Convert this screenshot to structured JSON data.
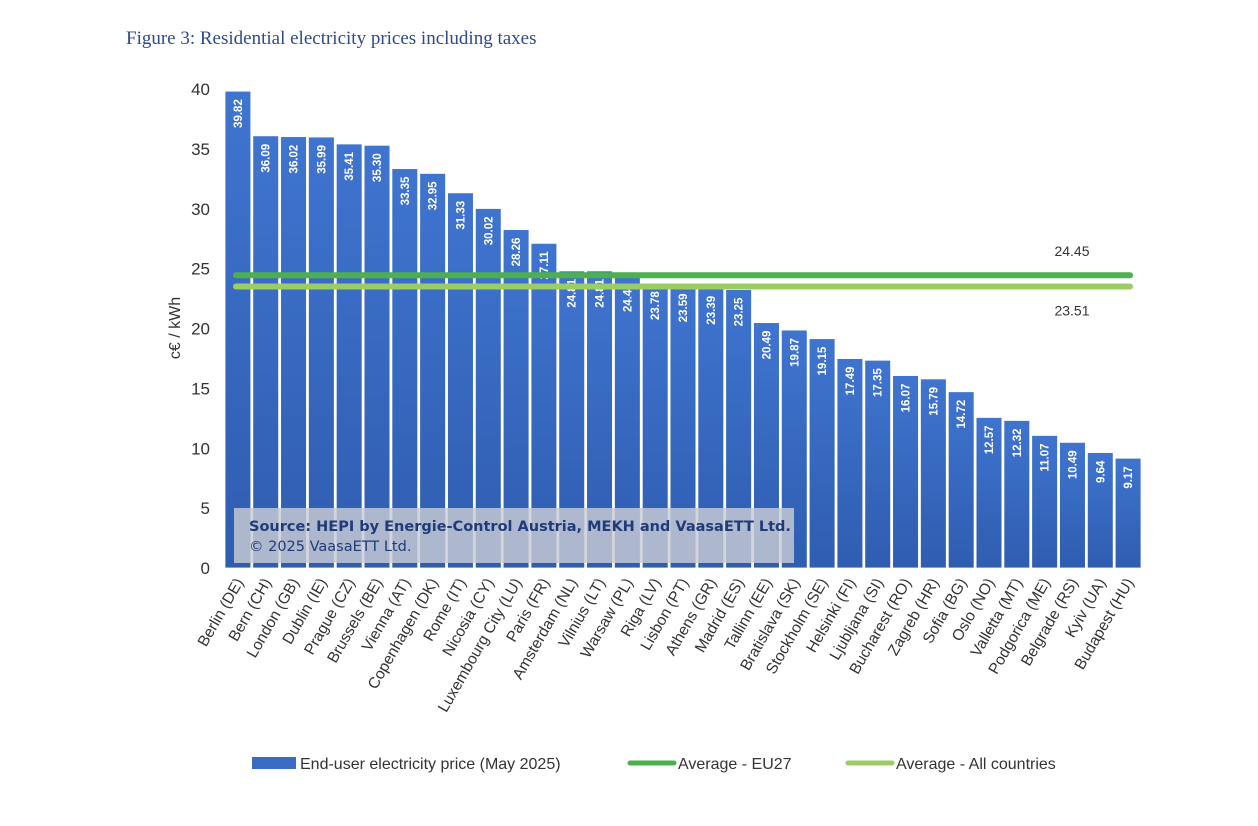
{
  "figure_title": "Figure 3: Residential electricity prices including taxes",
  "source": {
    "line1": "Source: HEPI by Energie-Control Austria, MEKH and VaasaETT Ltd.",
    "line2": "© 2025 VaasaETT Ltd."
  },
  "chart_data": {
    "type": "bar",
    "title": "",
    "xlabel": "",
    "ylabel": "c€ / kWh",
    "ylim": [
      0,
      40
    ],
    "yticks": [
      0,
      5,
      10,
      15,
      20,
      25,
      30,
      35,
      40
    ],
    "categories": [
      "Berlin (DE)",
      "Bern (CH)",
      "London (GB)",
      "Dublin (IE)",
      "Prague (CZ)",
      "Brussels (BE)",
      "Vienna (AT)",
      "Copenhagen (DK)",
      "Rome (IT)",
      "Nicosia (CY)",
      "Luxembourg City (LU)",
      "Paris (FR)",
      "Amsterdam (NL)",
      "Vilnius (LT)",
      "Warsaw (PL)",
      "Riga (LV)",
      "Lisbon (PT)",
      "Athens (GR)",
      "Madrid (ES)",
      "Tallinn (EE)",
      "Bratislava (SK)",
      "Stockholm (SE)",
      "Helsinki (FI)",
      "Ljubljana (SI)",
      "Bucharest (RO)",
      "Zagreb (HR)",
      "Sofia (BG)",
      "Oslo (NO)",
      "Valletta (MT)",
      "Podgorica (ME)",
      "Belgrade (RS)",
      "Kyiv (UA)",
      "Budapest (HU)"
    ],
    "series": [
      {
        "name": "End-user electricity price (May 2025)",
        "color": "#3a6cc4",
        "values": [
          39.82,
          36.09,
          36.02,
          35.99,
          35.41,
          35.3,
          33.35,
          32.95,
          31.33,
          30.02,
          28.26,
          27.11,
          24.81,
          24.81,
          24.45,
          23.78,
          23.59,
          23.39,
          23.25,
          20.49,
          19.87,
          19.15,
          17.49,
          17.35,
          16.07,
          15.79,
          14.72,
          12.57,
          12.32,
          11.07,
          10.49,
          9.64,
          9.17
        ]
      }
    ],
    "value_labels": [
      "39.82",
      "36.09",
      "36.02",
      "35.99",
      "35.41",
      "35.30",
      "33.35",
      "32.95",
      "31.33",
      "30.02",
      "28.26",
      "27.11",
      "24.81",
      "24.81",
      "24.45",
      "23.78",
      "23.59",
      "23.39",
      "23.25",
      "20.49",
      "19.87",
      "19.15",
      "17.49",
      "17.35",
      "16.07",
      "15.79",
      "14.72",
      "12.57",
      "12.32",
      "11.07",
      "10.49",
      "9.64",
      "9.17"
    ],
    "lines": [
      {
        "name": "Average - EU27",
        "value": 24.45,
        "label": "24.45",
        "color": "#4caf50"
      },
      {
        "name": "Average - All countries",
        "value": 23.51,
        "label": "23.51",
        "color": "#9ccc65"
      }
    ],
    "grid": false,
    "legend_position": "bottom"
  }
}
